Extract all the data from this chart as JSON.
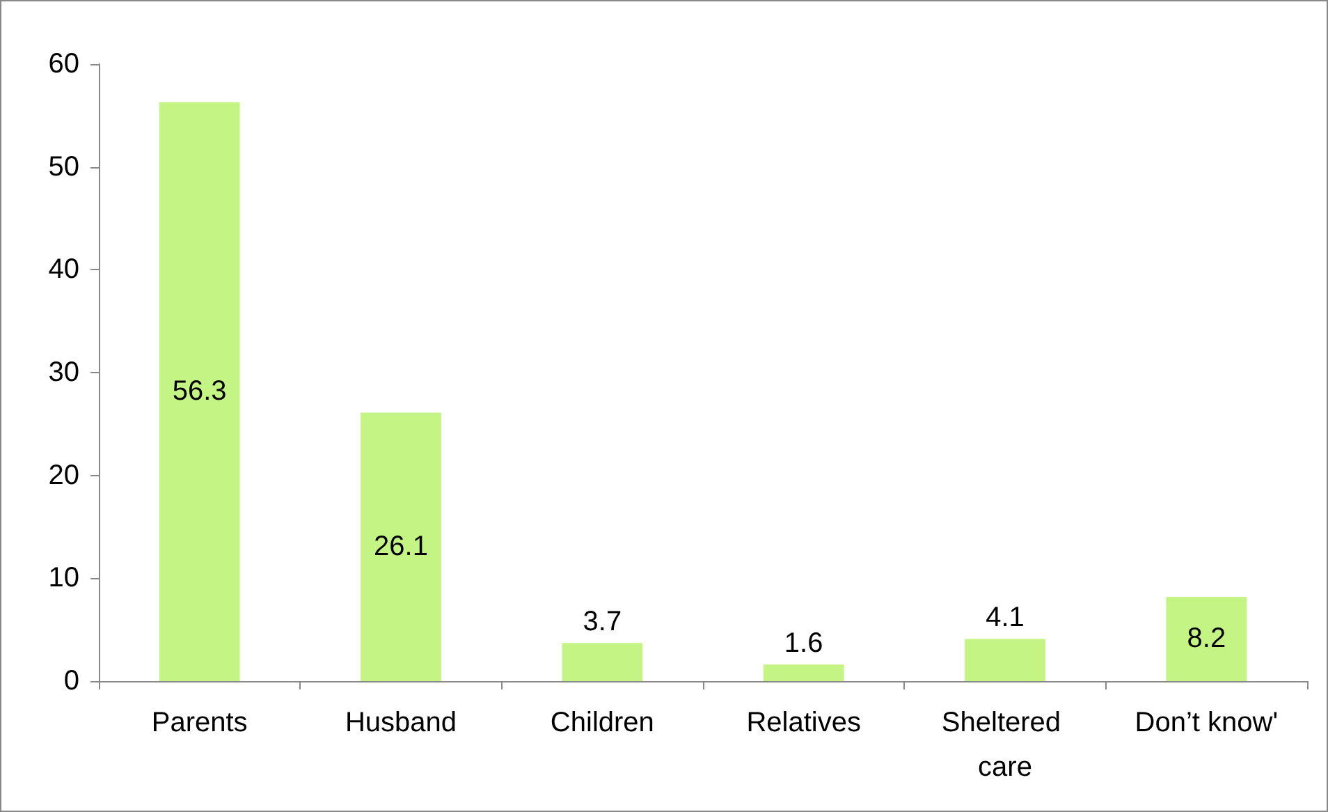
{
  "chart_data": {
    "type": "bar",
    "categories": [
      "Parents",
      "Husband",
      "Children",
      "Relatives",
      "Sheltered care",
      "Don’t know'"
    ],
    "values": [
      56.3,
      26.1,
      3.7,
      1.6,
      4.1,
      8.2
    ],
    "color": "#c4f584",
    "ylim": [
      0,
      60
    ],
    "yticks": [
      0,
      10,
      20,
      30,
      40,
      50,
      60
    ],
    "data_labels": true
  }
}
